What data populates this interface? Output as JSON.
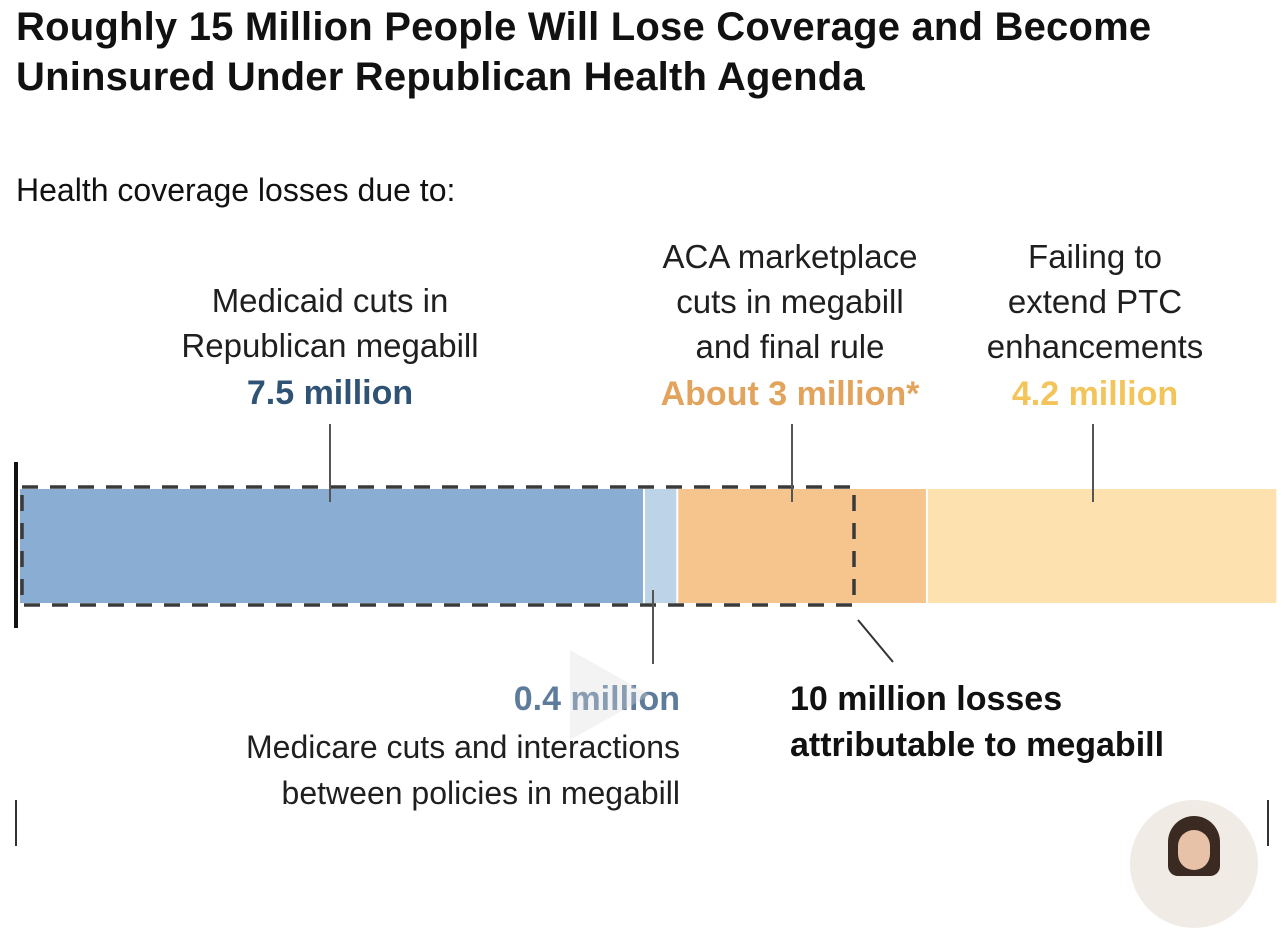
{
  "title": "Roughly 15 Million People Will Lose Coverage and Become Uninsured Under Republican Health Agenda",
  "subtitle": "Health coverage losses due to:",
  "chart_data": {
    "type": "bar",
    "orientation": "horizontal-stacked",
    "unit": "million",
    "segments": [
      {
        "name": "Medicaid cuts in Republican megabill",
        "value": 7.5,
        "value_label": "7.5 million",
        "color": "#8aaed3"
      },
      {
        "name": "Medicare cuts and interactions between policies in megabill",
        "value": 0.4,
        "value_label": "0.4 million",
        "color": "#bcd3e8"
      },
      {
        "name": "ACA marketplace cuts in megabill and final rule",
        "value": 3,
        "value_label": "About 3 million*",
        "color": "#f6c58e"
      },
      {
        "name": "Failing to extend PTC enhancements",
        "value": 4.2,
        "value_label": "4.2 million",
        "color": "#fde2b0"
      }
    ],
    "bracket": {
      "value": 10,
      "label": "10 million losses attributable to megabill"
    },
    "total": 15
  },
  "labels": {
    "medicaid_line1": "Medicaid cuts in",
    "medicaid_line2": "Republican megabill",
    "medicaid_value": "7.5 million",
    "aca_line1": "ACA marketplace",
    "aca_line2": "cuts in megabill",
    "aca_line3": "and final rule",
    "aca_value": "About 3 million*",
    "ptc_line1": "Failing to",
    "ptc_line2": "extend PTC",
    "ptc_line3": "enhancements",
    "ptc_value": "4.2 million",
    "medicare_value": "0.4 million",
    "medicare_line1": "Medicare cuts and interactions",
    "medicare_line2": "between policies in megabill",
    "bracket_line1": "10 million losses",
    "bracket_line2": "attributable to megabill"
  },
  "colors": {
    "medicaid": "#8aaed3",
    "medicare": "#bcd3e8",
    "aca": "#f6c58e",
    "ptc": "#fde2b0",
    "dashed": "#3a3a3a"
  }
}
